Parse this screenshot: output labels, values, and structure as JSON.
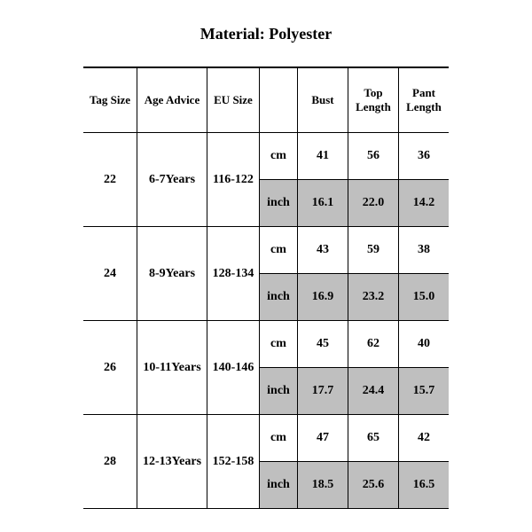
{
  "title": "Material: Polyester",
  "columns": {
    "tag": "Tag Size",
    "age": "Age Advice",
    "eu": "EU Size",
    "unit": "",
    "bust": "Bust",
    "top": "Top Length",
    "pant": "Pant Length"
  },
  "units": {
    "cm": "cm",
    "inch": "inch"
  },
  "rows": [
    {
      "tag": "22",
      "age": "6-7Years",
      "eu": "116-122",
      "cm": {
        "bust": "41",
        "top": "56",
        "pant": "36"
      },
      "inch": {
        "bust": "16.1",
        "top": "22.0",
        "pant": "14.2"
      }
    },
    {
      "tag": "24",
      "age": "8-9Years",
      "eu": "128-134",
      "cm": {
        "bust": "43",
        "top": "59",
        "pant": "38"
      },
      "inch": {
        "bust": "16.9",
        "top": "23.2",
        "pant": "15.0"
      }
    },
    {
      "tag": "26",
      "age": "10-11Years",
      "eu": "140-146",
      "cm": {
        "bust": "45",
        "top": "62",
        "pant": "40"
      },
      "inch": {
        "bust": "17.7",
        "top": "24.4",
        "pant": "15.7"
      }
    },
    {
      "tag": "28",
      "age": "12-13Years",
      "eu": "152-158",
      "cm": {
        "bust": "47",
        "top": "65",
        "pant": "42"
      },
      "inch": {
        "bust": "18.5",
        "top": "25.6",
        "pant": "16.5"
      }
    }
  ],
  "style": {
    "shade_color": "#bfbfbf",
    "border_color": "#000000",
    "background_color": "#ffffff",
    "font_family": "Times New Roman",
    "title_fontsize": 18,
    "body_fontsize": 14
  }
}
